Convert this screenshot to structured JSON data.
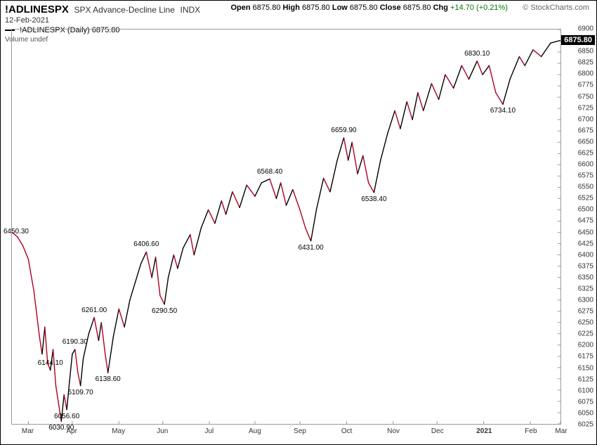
{
  "header": {
    "symbol": "!ADLINESPX",
    "description": "SPX Advance-Decline Line",
    "index_tag": "INDX",
    "date": "12-Feb-2021",
    "ohlc": {
      "open_label": "Open",
      "open": "6875.80",
      "high_label": "High",
      "high": "6875.80",
      "low_label": "Low",
      "low": "6875.80",
      "close_label": "Close",
      "close": "6875.80",
      "chg_label": "Chg",
      "chg": "+14.70 (+0.21%)"
    },
    "credit": "© StockCharts.com"
  },
  "legend": {
    "line": "!ADLINESPX (Daily)",
    "value": "6875.80"
  },
  "volume_label": "Volume undef",
  "chart": {
    "y_min": 6025,
    "y_max": 6900,
    "y_step": 25,
    "close_value": 6875.8,
    "close_text": "6875.80",
    "background": "#ffffff",
    "grid_color": "#cccccc",
    "up_color": "#000000",
    "down_color": "#b00020",
    "line_width": 1.4,
    "x_ticks": [
      {
        "t": 0.03,
        "label": "Mar"
      },
      {
        "t": 0.11,
        "label": "Apr"
      },
      {
        "t": 0.195,
        "label": "May"
      },
      {
        "t": 0.275,
        "label": "Jun"
      },
      {
        "t": 0.36,
        "label": "Jul"
      },
      {
        "t": 0.443,
        "label": "Aug"
      },
      {
        "t": 0.525,
        "label": "Sep"
      },
      {
        "t": 0.61,
        "label": "Oct"
      },
      {
        "t": 0.695,
        "label": "Nov"
      },
      {
        "t": 0.775,
        "label": "Dec"
      },
      {
        "t": 0.86,
        "label": "2021",
        "bold": true
      },
      {
        "t": 0.945,
        "label": "Feb"
      },
      {
        "t": 1.0,
        "label": "Mar"
      }
    ],
    "series": [
      {
        "t": 0.0,
        "v": 6450.3
      },
      {
        "t": 0.01,
        "v": 6440
      },
      {
        "t": 0.02,
        "v": 6420
      },
      {
        "t": 0.03,
        "v": 6390
      },
      {
        "t": 0.04,
        "v": 6320
      },
      {
        "t": 0.05,
        "v": 6220
      },
      {
        "t": 0.055,
        "v": 6180
      },
      {
        "t": 0.06,
        "v": 6240
      },
      {
        "t": 0.065,
        "v": 6160
      },
      {
        "t": 0.07,
        "v": 6144.1
      },
      {
        "t": 0.075,
        "v": 6190
      },
      {
        "t": 0.08,
        "v": 6110
      },
      {
        "t": 0.085,
        "v": 6070
      },
      {
        "t": 0.09,
        "v": 6030.9
      },
      {
        "t": 0.095,
        "v": 6090
      },
      {
        "t": 0.1,
        "v": 6056.6
      },
      {
        "t": 0.105,
        "v": 6120
      },
      {
        "t": 0.11,
        "v": 6180
      },
      {
        "t": 0.115,
        "v": 6190.3
      },
      {
        "t": 0.12,
        "v": 6140
      },
      {
        "t": 0.125,
        "v": 6109.7
      },
      {
        "t": 0.13,
        "v": 6170
      },
      {
        "t": 0.14,
        "v": 6225
      },
      {
        "t": 0.15,
        "v": 6261.0
      },
      {
        "t": 0.158,
        "v": 6210
      },
      {
        "t": 0.163,
        "v": 6250
      },
      {
        "t": 0.17,
        "v": 6180
      },
      {
        "t": 0.175,
        "v": 6138.6
      },
      {
        "t": 0.185,
        "v": 6220
      },
      {
        "t": 0.195,
        "v": 6280
      },
      {
        "t": 0.205,
        "v": 6240
      },
      {
        "t": 0.215,
        "v": 6300
      },
      {
        "t": 0.225,
        "v": 6340
      },
      {
        "t": 0.235,
        "v": 6380
      },
      {
        "t": 0.245,
        "v": 6406.6
      },
      {
        "t": 0.255,
        "v": 6350
      },
      {
        "t": 0.262,
        "v": 6395
      },
      {
        "t": 0.27,
        "v": 6310
      },
      {
        "t": 0.278,
        "v": 6290.5
      },
      {
        "t": 0.285,
        "v": 6350
      },
      {
        "t": 0.295,
        "v": 6400
      },
      {
        "t": 0.302,
        "v": 6370
      },
      {
        "t": 0.312,
        "v": 6415
      },
      {
        "t": 0.325,
        "v": 6445
      },
      {
        "t": 0.332,
        "v": 6400
      },
      {
        "t": 0.345,
        "v": 6460
      },
      {
        "t": 0.358,
        "v": 6500
      },
      {
        "t": 0.37,
        "v": 6470
      },
      {
        "t": 0.382,
        "v": 6520
      },
      {
        "t": 0.39,
        "v": 6490
      },
      {
        "t": 0.402,
        "v": 6540
      },
      {
        "t": 0.415,
        "v": 6505
      },
      {
        "t": 0.428,
        "v": 6555
      },
      {
        "t": 0.443,
        "v": 6530
      },
      {
        "t": 0.455,
        "v": 6560
      },
      {
        "t": 0.47,
        "v": 6568.4
      },
      {
        "t": 0.482,
        "v": 6525
      },
      {
        "t": 0.49,
        "v": 6560
      },
      {
        "t": 0.5,
        "v": 6510
      },
      {
        "t": 0.512,
        "v": 6545
      },
      {
        "t": 0.525,
        "v": 6500
      },
      {
        "t": 0.535,
        "v": 6460
      },
      {
        "t": 0.545,
        "v": 6431.0
      },
      {
        "t": 0.555,
        "v": 6500
      },
      {
        "t": 0.568,
        "v": 6570
      },
      {
        "t": 0.58,
        "v": 6540
      },
      {
        "t": 0.593,
        "v": 6610
      },
      {
        "t": 0.605,
        "v": 6659.9
      },
      {
        "t": 0.613,
        "v": 6610
      },
      {
        "t": 0.62,
        "v": 6650
      },
      {
        "t": 0.63,
        "v": 6580
      },
      {
        "t": 0.64,
        "v": 6620
      },
      {
        "t": 0.65,
        "v": 6560
      },
      {
        "t": 0.66,
        "v": 6538.4
      },
      {
        "t": 0.672,
        "v": 6610
      },
      {
        "t": 0.685,
        "v": 6670
      },
      {
        "t": 0.698,
        "v": 6720
      },
      {
        "t": 0.708,
        "v": 6680
      },
      {
        "t": 0.72,
        "v": 6740
      },
      {
        "t": 0.73,
        "v": 6700
      },
      {
        "t": 0.74,
        "v": 6760
      },
      {
        "t": 0.75,
        "v": 6720
      },
      {
        "t": 0.765,
        "v": 6780
      },
      {
        "t": 0.778,
        "v": 6745
      },
      {
        "t": 0.79,
        "v": 6800
      },
      {
        "t": 0.805,
        "v": 6770
      },
      {
        "t": 0.82,
        "v": 6820
      },
      {
        "t": 0.833,
        "v": 6790
      },
      {
        "t": 0.848,
        "v": 6830.1
      },
      {
        "t": 0.858,
        "v": 6800
      },
      {
        "t": 0.87,
        "v": 6820
      },
      {
        "t": 0.882,
        "v": 6760
      },
      {
        "t": 0.895,
        "v": 6734.1
      },
      {
        "t": 0.908,
        "v": 6790
      },
      {
        "t": 0.925,
        "v": 6840
      },
      {
        "t": 0.935,
        "v": 6820
      },
      {
        "t": 0.95,
        "v": 6855
      },
      {
        "t": 0.965,
        "v": 6840
      },
      {
        "t": 0.982,
        "v": 6870
      },
      {
        "t": 1.0,
        "v": 6875.8
      }
    ],
    "point_labels": [
      {
        "t": 0.0,
        "v": 6450.3,
        "text": "6450.30",
        "pos": "left"
      },
      {
        "t": 0.07,
        "v": 6144.1,
        "text": "6144.10",
        "pos": "above"
      },
      {
        "t": 0.09,
        "v": 6030.9,
        "text": "6030.90",
        "pos": "below"
      },
      {
        "t": 0.1,
        "v": 6056.6,
        "text": "6056.60",
        "pos": "below"
      },
      {
        "t": 0.115,
        "v": 6190.3,
        "text": "6190.30",
        "pos": "above"
      },
      {
        "t": 0.125,
        "v": 6109.7,
        "text": "6109.70",
        "pos": "below"
      },
      {
        "t": 0.15,
        "v": 6261.0,
        "text": "6261.00",
        "pos": "above"
      },
      {
        "t": 0.175,
        "v": 6138.6,
        "text": "6138.60",
        "pos": "below"
      },
      {
        "t": 0.245,
        "v": 6406.6,
        "text": "6406.60",
        "pos": "above"
      },
      {
        "t": 0.278,
        "v": 6290.5,
        "text": "6290.50",
        "pos": "below"
      },
      {
        "t": 0.47,
        "v": 6568.4,
        "text": "6568.40",
        "pos": "above"
      },
      {
        "t": 0.545,
        "v": 6431.0,
        "text": "6431.00",
        "pos": "below"
      },
      {
        "t": 0.605,
        "v": 6659.9,
        "text": "6659.90",
        "pos": "above"
      },
      {
        "t": 0.66,
        "v": 6538.4,
        "text": "6538.40",
        "pos": "below"
      },
      {
        "t": 0.848,
        "v": 6830.1,
        "text": "6830.10",
        "pos": "above"
      },
      {
        "t": 0.895,
        "v": 6734.1,
        "text": "6734.10",
        "pos": "below"
      }
    ]
  }
}
